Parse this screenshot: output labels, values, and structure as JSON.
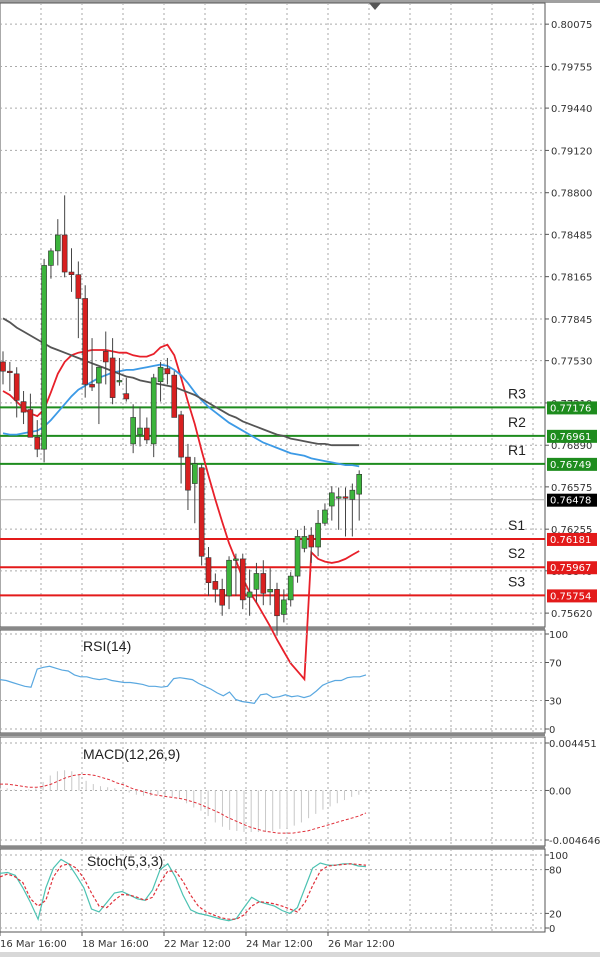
{
  "chart_data": [
    {
      "type": "candlestick",
      "title": "",
      "price_axis": {
        "ticks": [
          0.80075,
          0.79755,
          0.7944,
          0.7912,
          0.788,
          0.78485,
          0.78165,
          0.77845,
          0.7753,
          0.7721,
          0.7689,
          0.76575,
          0.76255,
          0.7594,
          0.7562
        ],
        "range": [
          0.7553,
          0.8023
        ]
      },
      "time_axis": {
        "labels": [
          "16 Mar 16:00",
          "18 Mar 16:00",
          "22 Mar 12:00",
          "24 Mar 12:00",
          "26 Mar 12:00"
        ]
      },
      "current_price": 0.76478,
      "current_price_color": "#000000",
      "pivot_levels": [
        {
          "name": "R3",
          "value": 0.77176,
          "color": "#1e8c1e"
        },
        {
          "name": "R2",
          "value": 0.76961,
          "color": "#1e8c1e"
        },
        {
          "name": "R1",
          "value": 0.76749,
          "color": "#1e8c1e"
        },
        {
          "name": "S1",
          "value": 0.76181,
          "color": "#e31a1a"
        },
        {
          "name": "S2",
          "value": 0.75967,
          "color": "#e31a1a"
        },
        {
          "name": "S3",
          "value": 0.75754,
          "color": "#e31a1a"
        }
      ],
      "candles": [
        {
          "o": 0.7752,
          "h": 0.776,
          "l": 0.7735,
          "c": 0.7745
        },
        {
          "o": 0.7745,
          "h": 0.7752,
          "l": 0.773,
          "c": 0.7744
        },
        {
          "o": 0.7743,
          "h": 0.7748,
          "l": 0.771,
          "c": 0.7723
        },
        {
          "o": 0.7722,
          "h": 0.773,
          "l": 0.7705,
          "c": 0.7714
        },
        {
          "o": 0.7716,
          "h": 0.7728,
          "l": 0.7695,
          "c": 0.7695
        },
        {
          "o": 0.7695,
          "h": 0.7708,
          "l": 0.768,
          "c": 0.7686
        },
        {
          "o": 0.7686,
          "h": 0.783,
          "l": 0.7676,
          "c": 0.7825
        },
        {
          "o": 0.7825,
          "h": 0.7838,
          "l": 0.7815,
          "c": 0.7836
        },
        {
          "o": 0.7836,
          "h": 0.786,
          "l": 0.7825,
          "c": 0.7848
        },
        {
          "o": 0.7848,
          "h": 0.7878,
          "l": 0.7816,
          "c": 0.782
        },
        {
          "o": 0.782,
          "h": 0.7838,
          "l": 0.7805,
          "c": 0.7818
        },
        {
          "o": 0.7818,
          "h": 0.7828,
          "l": 0.777,
          "c": 0.78
        },
        {
          "o": 0.78,
          "h": 0.781,
          "l": 0.7725,
          "c": 0.7735
        },
        {
          "o": 0.7735,
          "h": 0.777,
          "l": 0.773,
          "c": 0.7733
        },
        {
          "o": 0.7736,
          "h": 0.7748,
          "l": 0.7705,
          "c": 0.7748
        },
        {
          "o": 0.776,
          "h": 0.7775,
          "l": 0.7735,
          "c": 0.7752
        },
        {
          "o": 0.7755,
          "h": 0.777,
          "l": 0.772,
          "c": 0.7725
        },
        {
          "o": 0.7738,
          "h": 0.7755,
          "l": 0.7734,
          "c": 0.7738
        },
        {
          "o": 0.7728,
          "h": 0.774,
          "l": 0.7722,
          "c": 0.7724
        },
        {
          "o": 0.769,
          "h": 0.772,
          "l": 0.7683,
          "c": 0.771
        },
        {
          "o": 0.7697,
          "h": 0.7718,
          "l": 0.7688,
          "c": 0.7702
        },
        {
          "o": 0.7702,
          "h": 0.771,
          "l": 0.769,
          "c": 0.7693
        },
        {
          "o": 0.769,
          "h": 0.7743,
          "l": 0.768,
          "c": 0.774
        },
        {
          "o": 0.7737,
          "h": 0.7752,
          "l": 0.7722,
          "c": 0.7748
        },
        {
          "o": 0.7747,
          "h": 0.7755,
          "l": 0.7735,
          "c": 0.7743
        },
        {
          "o": 0.7742,
          "h": 0.7745,
          "l": 0.7715,
          "c": 0.771
        },
        {
          "o": 0.7712,
          "h": 0.7715,
          "l": 0.766,
          "c": 0.768
        },
        {
          "o": 0.768,
          "h": 0.769,
          "l": 0.764,
          "c": 0.7655
        },
        {
          "o": 0.766,
          "h": 0.768,
          "l": 0.763,
          "c": 0.7675
        },
        {
          "o": 0.7672,
          "h": 0.7675,
          "l": 0.7598,
          "c": 0.7605
        },
        {
          "o": 0.7604,
          "h": 0.7612,
          "l": 0.7575,
          "c": 0.7585
        },
        {
          "o": 0.7586,
          "h": 0.7592,
          "l": 0.757,
          "c": 0.758
        },
        {
          "o": 0.758,
          "h": 0.7588,
          "l": 0.756,
          "c": 0.7568
        },
        {
          "o": 0.7575,
          "h": 0.7605,
          "l": 0.7565,
          "c": 0.7602
        },
        {
          "o": 0.7602,
          "h": 0.7607,
          "l": 0.7575,
          "c": 0.7603
        },
        {
          "o": 0.7603,
          "h": 0.7607,
          "l": 0.7565,
          "c": 0.7572
        },
        {
          "o": 0.7574,
          "h": 0.7595,
          "l": 0.756,
          "c": 0.7578
        },
        {
          "o": 0.758,
          "h": 0.76,
          "l": 0.757,
          "c": 0.7592
        },
        {
          "o": 0.7592,
          "h": 0.7602,
          "l": 0.7568,
          "c": 0.7577
        },
        {
          "o": 0.7578,
          "h": 0.7596,
          "l": 0.7568,
          "c": 0.758
        },
        {
          "o": 0.758,
          "h": 0.7585,
          "l": 0.7545,
          "c": 0.756
        },
        {
          "o": 0.7561,
          "h": 0.758,
          "l": 0.7555,
          "c": 0.7572
        },
        {
          "o": 0.7572,
          "h": 0.7593,
          "l": 0.7567,
          "c": 0.759
        },
        {
          "o": 0.759,
          "h": 0.7625,
          "l": 0.7585,
          "c": 0.762
        },
        {
          "o": 0.7611,
          "h": 0.7628,
          "l": 0.7608,
          "c": 0.762
        },
        {
          "o": 0.7621,
          "h": 0.7627,
          "l": 0.76,
          "c": 0.7612
        },
        {
          "o": 0.7612,
          "h": 0.764,
          "l": 0.7605,
          "c": 0.763
        },
        {
          "o": 0.763,
          "h": 0.7645,
          "l": 0.7628,
          "c": 0.764
        },
        {
          "o": 0.7643,
          "h": 0.7658,
          "l": 0.7632,
          "c": 0.7653
        },
        {
          "o": 0.765,
          "h": 0.7657,
          "l": 0.7625,
          "c": 0.765
        },
        {
          "o": 0.765,
          "h": 0.7657,
          "l": 0.762,
          "c": 0.7649
        },
        {
          "o": 0.7648,
          "h": 0.766,
          "l": 0.762,
          "c": 0.7655
        },
        {
          "o": 0.7652,
          "h": 0.767,
          "l": 0.7632,
          "c": 0.7667
        }
      ],
      "moving_averages": [
        {
          "name": "MA-fast",
          "color": "#e8202a",
          "values": [
            0.773,
            0.7727,
            0.7722,
            0.7717,
            0.7713,
            0.7711,
            0.7716,
            0.7729,
            0.7743,
            0.7752,
            0.7757,
            0.7759,
            0.776,
            0.7761,
            0.7761,
            0.7761,
            0.776,
            0.7759,
            0.7759,
            0.7757,
            0.7756,
            0.7756,
            0.7758,
            0.7763,
            0.7765,
            0.7757,
            0.774,
            0.7722,
            0.7705,
            0.7685,
            0.7666,
            0.7648,
            0.7631,
            0.7615,
            0.7602,
            0.7588,
            0.7578,
            0.757,
            0.7561,
            0.7552,
            0.7542,
            0.7533,
            0.7524,
            0.7518,
            0.7512,
            0.7608,
            0.7603,
            0.7601,
            0.76,
            0.7601,
            0.7603,
            0.7606,
            0.7609
          ]
        },
        {
          "name": "MA-mid",
          "color": "#3c9ae6",
          "values": [
            0.7698,
            0.7697,
            0.7697,
            0.7698,
            0.7699,
            0.77,
            0.7703,
            0.7708,
            0.7714,
            0.772,
            0.7726,
            0.7731,
            0.7734,
            0.7737,
            0.774,
            0.7742,
            0.7744,
            0.7745,
            0.7746,
            0.7746,
            0.7747,
            0.7748,
            0.7749,
            0.775,
            0.7749,
            0.7746,
            0.7742,
            0.7736,
            0.7729,
            0.7723,
            0.7718,
            0.7714,
            0.771,
            0.7706,
            0.7703,
            0.77,
            0.7697,
            0.7694,
            0.7691,
            0.7689,
            0.7687,
            0.7685,
            0.7683,
            0.7682,
            0.7681,
            0.7679,
            0.7678,
            0.7677,
            0.7676,
            0.7675,
            0.7674,
            0.7674,
            0.7673
          ]
        },
        {
          "name": "MA-slow",
          "color": "#555555",
          "values": [
            0.7785,
            0.7782,
            0.7778,
            0.7775,
            0.7772,
            0.7769,
            0.7766,
            0.7763,
            0.7761,
            0.7759,
            0.7757,
            0.7755,
            0.7753,
            0.7751,
            0.7749,
            0.7747,
            0.7745,
            0.7743,
            0.7741,
            0.774,
            0.7738,
            0.7737,
            0.7736,
            0.7735,
            0.7734,
            0.7733,
            0.7731,
            0.7729,
            0.7727,
            0.7724,
            0.7721,
            0.7718,
            0.7715,
            0.7712,
            0.771,
            0.7707,
            0.7705,
            0.7703,
            0.7701,
            0.7699,
            0.7697,
            0.7696,
            0.7694,
            0.7693,
            0.7692,
            0.7691,
            0.769,
            0.769,
            0.7689,
            0.7689,
            0.7689,
            0.7689,
            0.7689
          ]
        }
      ]
    },
    {
      "type": "line",
      "title": "RSI(14)",
      "ylim": [
        0,
        100
      ],
      "ticks": [
        100,
        70,
        30,
        0
      ],
      "series": [
        {
          "name": "RSI",
          "color": "#5aa8e0",
          "values": [
            52,
            51,
            49,
            47,
            45,
            44,
            63,
            65,
            66,
            64,
            62,
            61,
            57,
            55,
            55,
            53,
            52,
            53,
            51,
            50,
            49,
            49,
            48,
            47,
            45,
            45,
            44,
            45,
            53,
            54,
            53,
            52,
            48,
            45,
            42,
            38,
            35,
            39,
            31,
            29,
            28,
            27,
            36,
            37,
            33,
            34,
            36,
            34,
            35,
            33,
            35,
            40,
            46,
            49,
            51,
            51,
            54,
            55,
            55,
            57
          ]
        }
      ]
    },
    {
      "type": "bar+line",
      "title": "MACD(12,26,9)",
      "ylim": [
        -0.004646,
        0.004451
      ],
      "ticks": [
        0.004451,
        0.0,
        -0.004646
      ],
      "series": [
        {
          "name": "MACD histogram",
          "color": "#c8c8c8",
          "values": [
            0.0002,
            0.0002,
            0.0001,
            0.0,
            0.0001,
            0.0002,
            0.0008,
            0.0014,
            0.0018,
            0.0019,
            0.0018,
            0.0015,
            0.0009,
            0.0006,
            0.0004,
            0.0003,
            0.0002,
            0.0,
            -0.0002,
            -0.0004,
            -0.0005,
            -0.0005,
            -0.0004,
            -0.0005,
            -0.0006,
            -0.0008,
            -0.0012,
            -0.0016,
            -0.0019,
            -0.0024,
            -0.003,
            -0.0034,
            -0.0037,
            -0.0038,
            -0.0039,
            -0.0039,
            -0.0039,
            -0.0039,
            -0.0038,
            -0.0036,
            -0.0035,
            -0.0033,
            -0.003,
            -0.0026,
            -0.0022,
            -0.0018,
            -0.0015,
            -0.0012,
            -0.0009,
            -0.0006,
            -0.0004,
            -0.0002
          ]
        },
        {
          "name": "Signal",
          "color": "#e0303a",
          "values": [
            0.0006,
            0.0006,
            0.0005,
            0.0004,
            0.0003,
            0.0003,
            0.0004,
            0.0006,
            0.0009,
            0.0012,
            0.0014,
            0.0015,
            0.0015,
            0.0014,
            0.0012,
            0.001,
            0.0007,
            0.0005,
            0.0002,
            0.0,
            -0.0002,
            -0.0004,
            -0.0005,
            -0.0006,
            -0.0007,
            -0.0008,
            -0.001,
            -0.0012,
            -0.0015,
            -0.0018,
            -0.0021,
            -0.0025,
            -0.0028,
            -0.0031,
            -0.0034,
            -0.0036,
            -0.0038,
            -0.0039,
            -0.004,
            -0.004,
            -0.004,
            -0.0039,
            -0.0038,
            -0.0036,
            -0.0034,
            -0.0032,
            -0.003,
            -0.0028,
            -0.0026,
            -0.0024,
            -0.0021
          ]
        }
      ]
    },
    {
      "type": "line",
      "title": "Stoch(5,3,3)",
      "ylim": [
        0,
        100
      ],
      "ticks": [
        100,
        80,
        20,
        0
      ],
      "series": [
        {
          "name": "%K",
          "color": "#4cc2b2",
          "values": [
            75,
            76,
            72,
            55,
            35,
            12,
            55,
            82,
            94,
            88,
            72,
            55,
            26,
            22,
            35,
            48,
            50,
            45,
            40,
            38,
            52,
            80,
            88,
            70,
            45,
            25,
            20,
            18,
            15,
            12,
            10,
            13,
            28,
            42,
            36,
            33,
            30,
            24,
            20,
            28,
            55,
            82,
            89,
            86,
            86,
            88,
            88,
            85,
            84
          ]
        },
        {
          "name": "%D",
          "color": "#e0303a",
          "values": [
            70,
            74,
            70,
            62,
            40,
            30,
            38,
            70,
            85,
            88,
            82,
            68,
            48,
            30,
            28,
            38,
            46,
            45,
            42,
            38,
            42,
            62,
            78,
            78,
            64,
            45,
            30,
            22,
            18,
            14,
            12,
            12,
            18,
            30,
            36,
            35,
            33,
            30,
            26,
            22,
            35,
            58,
            78,
            85,
            86,
            87,
            88,
            87,
            86
          ]
        }
      ]
    }
  ],
  "labels": {
    "rsi_title": "RSI(14)",
    "macd_title": "MACD(12,26,9)",
    "stoch_title": "Stoch(5,3,3)"
  }
}
